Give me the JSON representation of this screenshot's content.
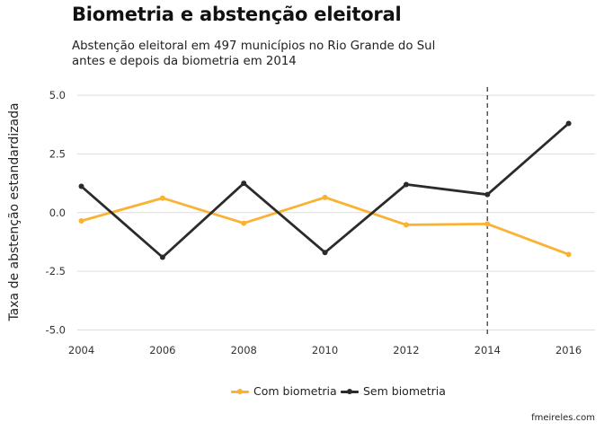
{
  "header": {
    "title": "Biometria e abstenção eleitoral",
    "subtitle_line1": "Abstenção eleitoral em 497 municípios no Rio Grande do Sul",
    "subtitle_line2": "antes e depois da biometria em 2014"
  },
  "credit": "fmeireles.com",
  "chart_data": {
    "type": "line",
    "title": "Biometria e abstenção eleitoral",
    "subtitle": "Abstenção eleitoral em 497 municípios no Rio Grande do Sul antes e depois da biometria em 2014",
    "xlabel": "",
    "ylabel": "Taxa de abstenção estandardizada",
    "x": [
      2004,
      2006,
      2008,
      2010,
      2012,
      2014,
      2016
    ],
    "x_ticks": [
      "2004",
      "2006",
      "2008",
      "2010",
      "2012",
      "2014",
      "2016"
    ],
    "y_ticks": [
      "5.0",
      "2.5",
      "0.0",
      "-2.5",
      "-5.0"
    ],
    "y_tick_values": [
      5.0,
      2.5,
      0.0,
      -2.5,
      -5.0
    ],
    "xlim": [
      2003.9,
      2016.65
    ],
    "ylim": [
      -5.25,
      5.35
    ],
    "grid": true,
    "legend_position": "bottom",
    "reference_line": {
      "x": 2014,
      "style": "dashed"
    },
    "series": [
      {
        "name": "Com biometria",
        "color": "#F9B233",
        "values": [
          -0.35,
          0.62,
          -0.45,
          0.65,
          -0.52,
          -0.48,
          -1.78
        ]
      },
      {
        "name": "Sem biometria",
        "color": "#2B2B2B",
        "values": [
          1.12,
          -1.9,
          1.25,
          -1.7,
          1.2,
          0.77,
          3.8
        ]
      }
    ]
  }
}
